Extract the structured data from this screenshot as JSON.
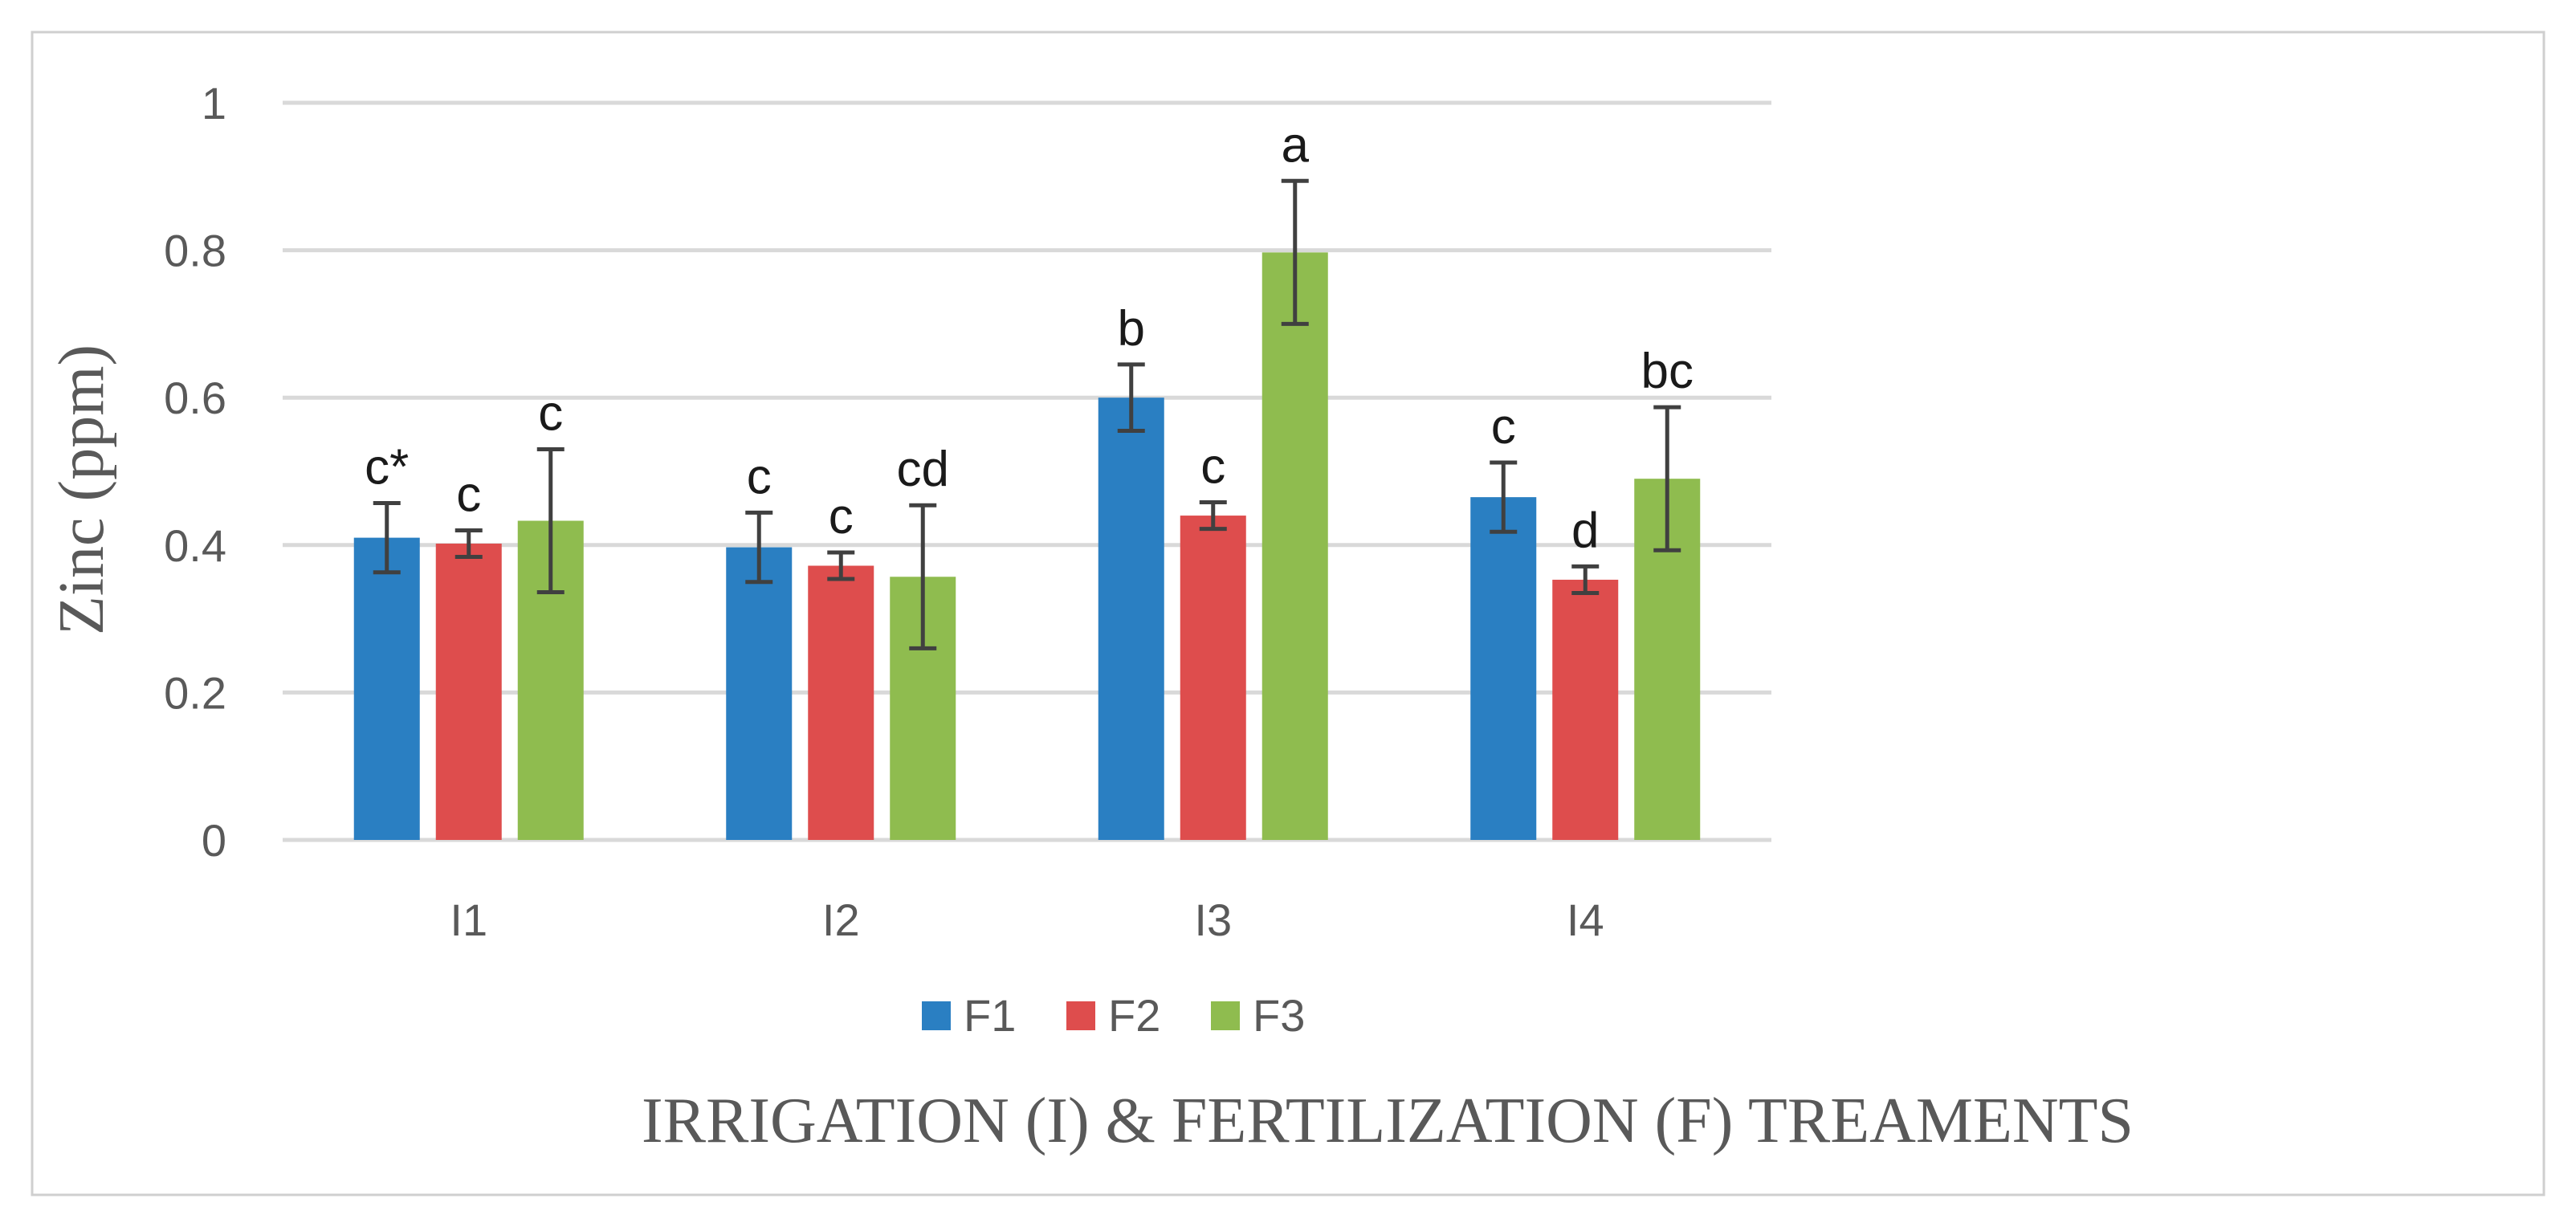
{
  "chart_data": {
    "type": "bar",
    "title": "",
    "xlabel": "IRRIGATION (I) & FERTILIZATION (F) TREAMENTS",
    "ylabel": "Zinc (ppm)",
    "ylim": [
      0,
      1
    ],
    "yticks": [
      0,
      0.2,
      0.4,
      0.6,
      0.8,
      1
    ],
    "ytick_labels": [
      "0",
      "0.2",
      "0.4",
      "0.6",
      "0.8",
      "1"
    ],
    "grid": true,
    "legend_position": "bottom",
    "categories": [
      "I1",
      "I2",
      "I3",
      "I4"
    ],
    "series": [
      {
        "name": "F1",
        "color": "#2a7fc2",
        "values": [
          0.41,
          0.397,
          0.6,
          0.465
        ],
        "errors": [
          0.047,
          0.047,
          0.045,
          0.047
        ],
        "letters": [
          "c*",
          "c",
          "b",
          "c"
        ]
      },
      {
        "name": "F2",
        "color": "#de4d4d",
        "values": [
          0.402,
          0.372,
          0.44,
          0.353
        ],
        "errors": [
          0.018,
          0.018,
          0.018,
          0.018
        ],
        "letters": [
          "c",
          "c",
          "c",
          "d"
        ]
      },
      {
        "name": "F3",
        "color": "#8fbc4f",
        "values": [
          0.433,
          0.357,
          0.797,
          0.49
        ],
        "errors": [
          0.097,
          0.097,
          0.097,
          0.097
        ],
        "letters": [
          "c",
          "cd",
          "a",
          "bc"
        ]
      }
    ]
  }
}
